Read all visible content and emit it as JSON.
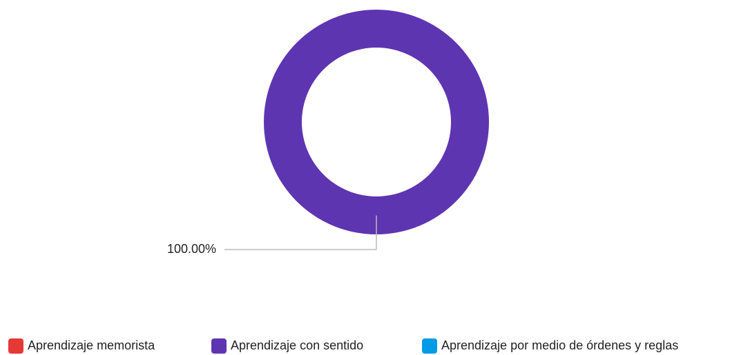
{
  "chart_data": {
    "type": "donut",
    "categories": [
      "Aprendizaje memorista",
      "Aprendizaje con sentido",
      "Aprendizaje por medio de órdenes y reglas"
    ],
    "values": [
      0,
      100,
      0
    ],
    "value_labels": [
      null,
      "100.00%",
      null
    ],
    "colors": [
      "#e53935",
      "#5e35b1",
      "#039be5"
    ],
    "legend": "bottom"
  }
}
